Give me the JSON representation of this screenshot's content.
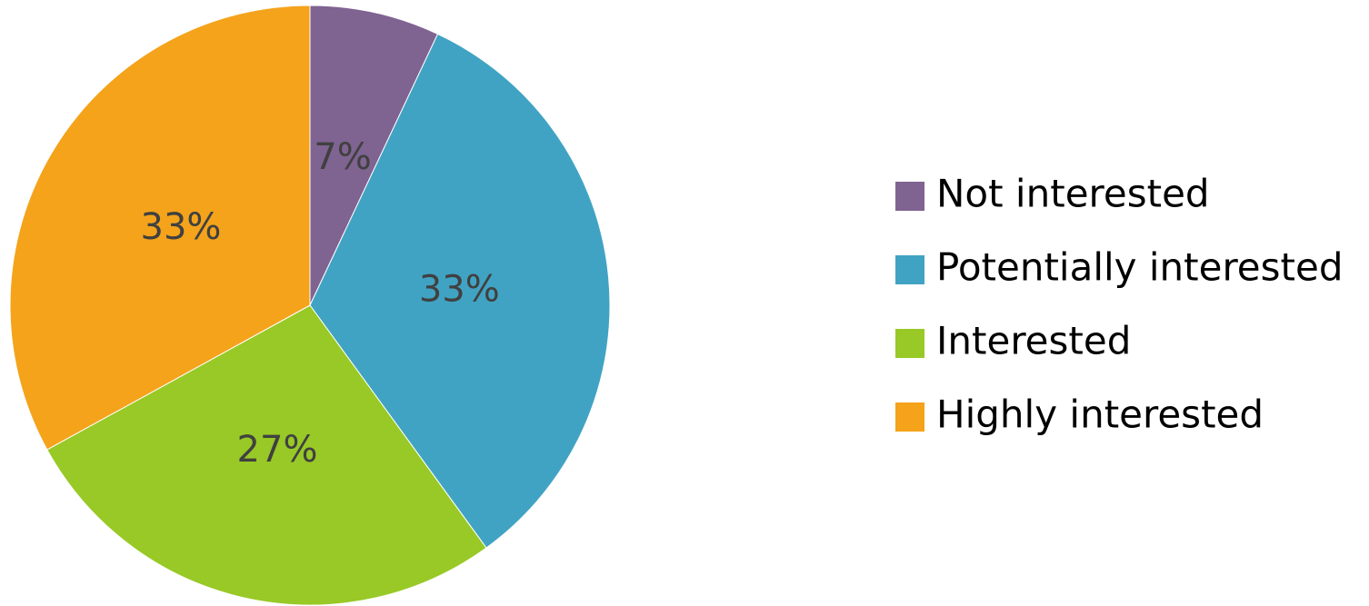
{
  "chart_data": {
    "type": "pie",
    "categories": [
      "Not interested",
      "Potentially interested",
      "Interested",
      "Highly interested"
    ],
    "values": [
      7,
      33,
      27,
      33
    ],
    "value_labels": [
      "7%",
      "33%",
      "27%",
      "33%"
    ],
    "colors": [
      "#7f6391",
      "#41a3c3",
      "#98c926",
      "#f4a31b"
    ],
    "legend": "right"
  }
}
